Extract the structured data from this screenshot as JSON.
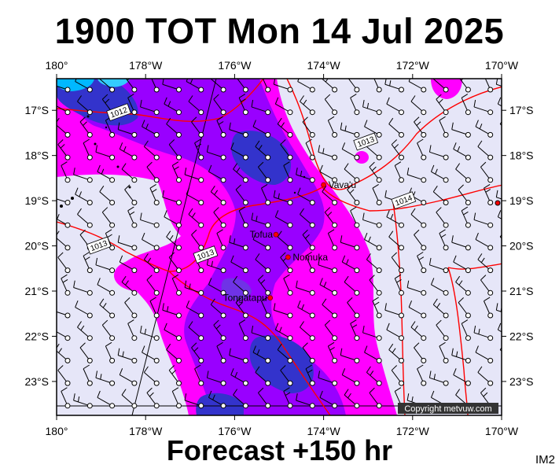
{
  "title": "1900 TOT Mon 14 Jul 2025",
  "subtitle": "Forecast +150 hr",
  "image_code": "IM2",
  "copyright": "Copyright metvuw.com",
  "lon_labels": [
    "180°",
    "178°W",
    "176°W",
    "174°W",
    "172°W",
    "170°W"
  ],
  "lat_labels": [
    "17°S",
    "18°S",
    "19°S",
    "20°S",
    "21°S",
    "22°S",
    "23°S"
  ],
  "places": [
    {
      "name": "Vava'u",
      "lon": -174.0,
      "lat": -18.65
    },
    {
      "name": "Tofua",
      "lon": -175.07,
      "lat": -19.75
    },
    {
      "name": "Nomuka",
      "lon": -174.8,
      "lat": -20.25
    },
    {
      "name": "Tongatapu",
      "lon": -175.2,
      "lat": -21.15
    }
  ],
  "isobar_labels": [
    {
      "text": "1012",
      "lon": -178.6,
      "lat": -17.05
    },
    {
      "text": "1013",
      "lon": -173.05,
      "lat": -17.7
    },
    {
      "text": "1014",
      "lon": -172.2,
      "lat": -19.0
    },
    {
      "text": "1013",
      "lon": -179.05,
      "lat": -20.0
    },
    {
      "text": "1013",
      "lon": -176.65,
      "lat": -20.2
    }
  ],
  "colors": {
    "background": "#e6e6f8",
    "rain_light": "#ff00ff",
    "rain_medium": "#9900ff",
    "rain_heavy": "#3333cc",
    "rain_extreme": "#00b8ff",
    "isobar": "#ff0000"
  },
  "map_extent": {
    "lon_min": -180,
    "lon_max": -170,
    "lat_min": -23.75,
    "lat_max": -16.3
  }
}
